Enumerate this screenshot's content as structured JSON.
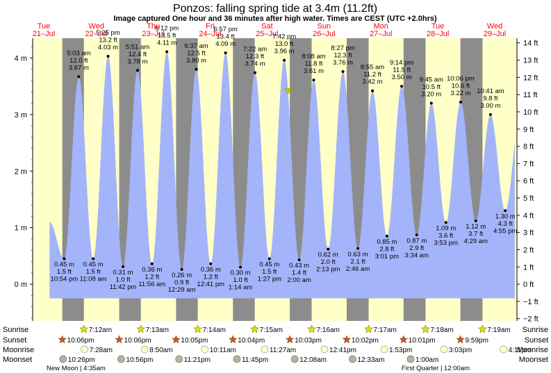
{
  "chart_data": {
    "type": "area",
    "title": "Ponzos: falling  spring tide at 3.4m (11.2ft)",
    "subtitle": "Image captured One hour and 36 minutes after high water. Times are CEST (UTC +2.0hrs)",
    "y_left_ticks": [
      "4 m",
      "3 m",
      "2 m",
      "1 m",
      "0 m"
    ],
    "y_right_ticks": [
      "14 ft",
      "13 ft",
      "12 ft",
      "11 ft",
      "10 ft",
      "9 ft",
      "8 ft",
      "7 ft",
      "6 ft",
      "5 ft",
      "4 ft",
      "3 ft",
      "2 ft",
      "1 ft",
      "0 ft",
      "−1 ft",
      "−2 ft"
    ],
    "ylim_m": [
      -0.65,
      4.35
    ],
    "days": [
      {
        "name": "Tue",
        "date": "21–Jul"
      },
      {
        "name": "Wed",
        "date": "22–Jul"
      },
      {
        "name": "Thu",
        "date": "23–Jul"
      },
      {
        "name": "Fri",
        "date": "24–Jul"
      },
      {
        "name": "Sat",
        "date": "25–Jul"
      },
      {
        "name": "Sun",
        "date": "26–Jul"
      },
      {
        "name": "Mon",
        "date": "27–Jul"
      },
      {
        "name": "Tue",
        "date": "28–Jul"
      },
      {
        "name": "Wed",
        "date": "29–Jul"
      }
    ],
    "tides": [
      {
        "type": "low",
        "time": "10:54 pm",
        "m": "0.45 m",
        "ft": "1.5 ft",
        "value": 0.45
      },
      {
        "type": "high",
        "time": "5:03 am",
        "m": "3.67 m",
        "ft": "12.0 ft",
        "value": 3.67
      },
      {
        "type": "low",
        "time": "11:08 am",
        "m": "0.45 m",
        "ft": "1.5 ft",
        "value": 0.45
      },
      {
        "type": "high",
        "time": "5:25 pm",
        "m": "4.03 m",
        "ft": "13.2 ft",
        "value": 4.03
      },
      {
        "type": "low",
        "time": "11:42 pm",
        "m": "0.31 m",
        "ft": "1.0 ft",
        "value": 0.31
      },
      {
        "type": "high",
        "time": "5:51 am",
        "m": "3.78 m",
        "ft": "12.4 ft",
        "value": 3.78
      },
      {
        "type": "low",
        "time": "11:56 am",
        "m": "0.36 m",
        "ft": "1.2 ft",
        "value": 0.36
      },
      {
        "type": "high",
        "time": "6:12 pm",
        "m": "4.11 m",
        "ft": "13.5 ft",
        "value": 4.11
      },
      {
        "type": "low",
        "time": "12:29 am",
        "m": "0.26 m",
        "ft": "0.9 ft",
        "value": 0.26
      },
      {
        "type": "high",
        "time": "6:37 am",
        "m": "3.80 m",
        "ft": "12.5 ft",
        "value": 3.8
      },
      {
        "type": "low",
        "time": "12:41 pm",
        "m": "0.36 m",
        "ft": "1.2 ft",
        "value": 0.36
      },
      {
        "type": "high",
        "time": "6:57 pm",
        "m": "4.09 m",
        "ft": "13.4 ft",
        "value": 4.09
      },
      {
        "type": "low",
        "time": "1:14 am",
        "m": "0.30 m",
        "ft": "1.0 ft",
        "value": 0.3
      },
      {
        "type": "high",
        "time": "7:22 am",
        "m": "3.74 m",
        "ft": "12.3 ft",
        "value": 3.74
      },
      {
        "type": "low",
        "time": "1:27 pm",
        "m": "0.45 m",
        "ft": "1.5 ft",
        "value": 0.45
      },
      {
        "type": "high",
        "time": "7:42 pm",
        "m": "3.96 m",
        "ft": "13.0 ft",
        "value": 3.96
      },
      {
        "type": "low",
        "time": "2:00 am",
        "m": "0.43 m",
        "ft": "1.4 ft",
        "value": 0.43
      },
      {
        "type": "high",
        "time": "8:08 am",
        "m": "3.61 m",
        "ft": "11.8 ft",
        "value": 3.61
      },
      {
        "type": "low",
        "time": "2:13 pm",
        "m": "0.62 m",
        "ft": "2.0 ft",
        "value": 0.62
      },
      {
        "type": "high",
        "time": "8:27 pm",
        "m": "3.76 m",
        "ft": "12.3 ft",
        "value": 3.76
      },
      {
        "type": "low",
        "time": "2:46 am",
        "m": "0.63 m",
        "ft": "2.1 ft",
        "value": 0.63
      },
      {
        "type": "high",
        "time": "8:55 am",
        "m": "3.42 m",
        "ft": "11.2 ft",
        "value": 3.42
      },
      {
        "type": "low",
        "time": "3:01 pm",
        "m": "0.85 m",
        "ft": "2.8 ft",
        "value": 0.85
      },
      {
        "type": "high",
        "time": "9:14 pm",
        "m": "3.50 m",
        "ft": "11.5 ft",
        "value": 3.5
      },
      {
        "type": "low",
        "time": "3:34 am",
        "m": "0.87 m",
        "ft": "2.9 ft",
        "value": 0.87
      },
      {
        "type": "high",
        "time": "9:45 am",
        "m": "3.20 m",
        "ft": "10.5 ft",
        "value": 3.2
      },
      {
        "type": "low",
        "time": "3:53 pm",
        "m": "1.09 m",
        "ft": "3.6 ft",
        "value": 1.09
      },
      {
        "type": "high",
        "time": "10:06 pm",
        "m": "3.22 m",
        "ft": "10.6 ft",
        "value": 3.22
      },
      {
        "type": "low",
        "time": "4:29 am",
        "m": "1.12 m",
        "ft": "3.7 ft",
        "value": 1.12
      },
      {
        "type": "high",
        "time": "10:41 am",
        "m": "3.00 m",
        "ft": "9.8 ft",
        "value": 3.0
      },
      {
        "type": "low",
        "time": "4:55 pm",
        "m": "1.30 m",
        "ft": "4.3 ft",
        "value": 1.3
      }
    ],
    "current_marker_m": 3.4,
    "rows": {
      "sunrise_label": "Sunrise",
      "sunset_label": "Sunset",
      "moonrise_label": "Moonrise",
      "moonset_label": "Moonset",
      "sunrise": [
        "7:12am",
        "7:13am",
        "7:14am",
        "7:15am",
        "7:16am",
        "7:17am",
        "7:18am",
        "7:19am"
      ],
      "sunset": [
        "10:06pm",
        "10:06pm",
        "10:05pm",
        "10:04pm",
        "10:03pm",
        "10:02pm",
        "10:01pm",
        "9:59pm"
      ],
      "moonrise": [
        "7:28am",
        "8:50am",
        "10:11am",
        "11:27am",
        "12:41pm",
        "1:53pm",
        "3:03pm",
        "4:11pm"
      ],
      "moonset": [
        "10:26pm",
        "10:56pm",
        "11:21pm",
        "11:45pm",
        "12:08am",
        "12:33am",
        "1:00am"
      ]
    },
    "moon_notes": [
      "New Moon | 4:35am",
      "First Quarter | 12:00am"
    ],
    "colors": {
      "day": "#ffffc8",
      "night": "#8c8c8c",
      "water": "#a4b4fa",
      "title": "#000000",
      "date": "#ff0000",
      "marker": "#c8c800",
      "sun": "#e0e000",
      "sunset_star": "#d05030",
      "moonrise_dot": "#ffffc8",
      "moonset_dot": "#b4b4a0"
    }
  }
}
